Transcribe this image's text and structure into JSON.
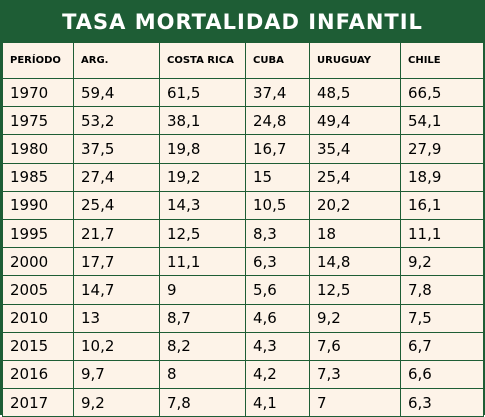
{
  "title": "TASA MORTALIDAD INFANTIL",
  "colors": {
    "header_bg": "#1e5d35",
    "cell_bg": "#fdf3e8",
    "border": "#1e5d35"
  },
  "chart_data": {
    "type": "table",
    "title": "TASA MORTALIDAD INFANTIL",
    "columns": [
      "PERÍODO",
      "ARG.",
      "COSTA RICA",
      "CUBA",
      "URUGUAY",
      "CHILE"
    ],
    "rows": [
      [
        "1970",
        "59,4",
        "61,5",
        "37,4",
        "48,5",
        "66,5"
      ],
      [
        "1975",
        "53,2",
        "38,1",
        "24,8",
        "49,4",
        "54,1"
      ],
      [
        "1980",
        "37,5",
        "19,8",
        "16,7",
        "35,4",
        "27,9"
      ],
      [
        "1985",
        "27,4",
        "19,2",
        "15",
        "25,4",
        "18,9"
      ],
      [
        "1990",
        "25,4",
        "14,3",
        "10,5",
        "20,2",
        "16,1"
      ],
      [
        "1995",
        "21,7",
        "12,5",
        "8,3",
        "18",
        "11,1"
      ],
      [
        "2000",
        "17,7",
        "11,1",
        "6,3",
        "14,8",
        "9,2"
      ],
      [
        "2005",
        "14,7",
        "9",
        "5,6",
        "12,5",
        "7,8"
      ],
      [
        "2010",
        "13",
        "8,7",
        "4,6",
        "9,2",
        "7,5"
      ],
      [
        "2015",
        "10,2",
        "8,2",
        "4,3",
        "7,6",
        "6,7"
      ],
      [
        "2016",
        "9,7",
        "8",
        "4,2",
        "7,3",
        "6,6"
      ],
      [
        "2017",
        "9,2",
        "7,8",
        "4,1",
        "7",
        "6,3"
      ]
    ]
  }
}
